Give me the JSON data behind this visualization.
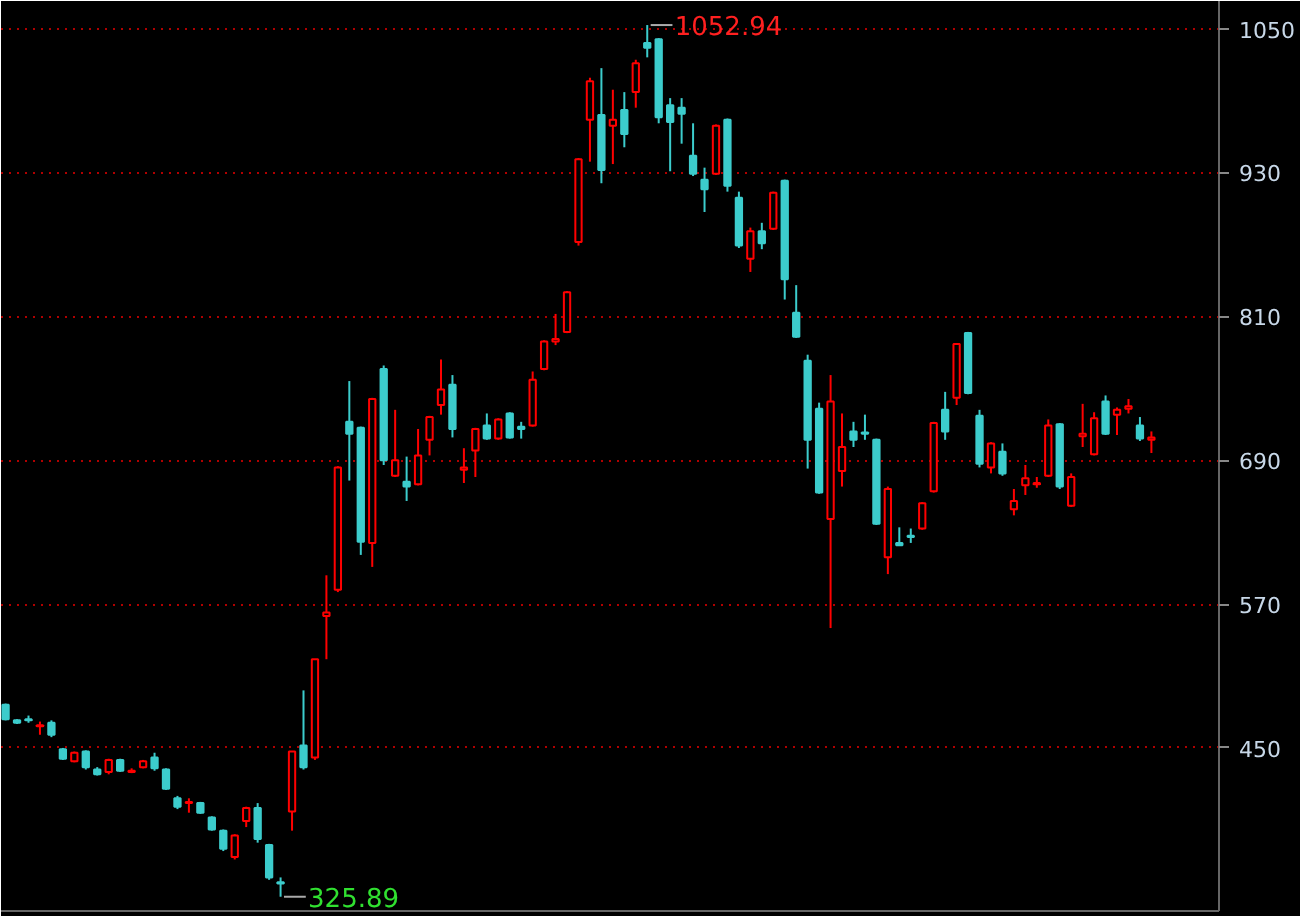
{
  "chart_data": {
    "type": "candlestick",
    "categories": [
      null,
      null,
      null,
      null,
      null,
      null,
      null,
      null,
      null,
      null,
      null,
      null,
      null,
      null,
      null,
      null,
      null,
      null,
      null,
      null,
      null,
      null,
      null,
      null,
      null,
      null,
      null,
      null,
      null,
      null,
      null,
      null,
      null,
      null,
      null,
      null,
      null,
      null,
      null,
      null,
      null,
      null,
      null,
      null,
      null,
      null,
      null,
      null,
      null,
      null,
      null,
      null,
      null,
      null,
      null,
      null,
      null,
      null,
      null,
      null,
      null,
      null,
      null,
      null,
      null,
      null,
      null,
      null,
      null,
      null,
      null,
      null,
      null,
      null,
      null,
      null,
      null,
      null,
      null,
      null,
      null,
      null,
      null,
      null,
      null,
      null,
      null,
      null,
      null,
      null,
      null,
      null,
      null,
      null,
      null,
      null,
      null,
      null,
      null,
      null,
      null
    ],
    "ohlc": [
      [
        486,
        487,
        473,
        474
      ],
      [
        473,
        474,
        470,
        471
      ],
      [
        474,
        477,
        471,
        473
      ],
      [
        468,
        472,
        461,
        469
      ],
      [
        471,
        473,
        459,
        461
      ],
      [
        449,
        450,
        440,
        441
      ],
      [
        439,
        447,
        438,
        446
      ],
      [
        447,
        448,
        432,
        434
      ],
      [
        432,
        434,
        427,
        428
      ],
      [
        430,
        441,
        428,
        440
      ],
      [
        440,
        441,
        430,
        431
      ],
      [
        430,
        433,
        429,
        431
      ],
      [
        434,
        440,
        433,
        439
      ],
      [
        442,
        446,
        431,
        433
      ],
      [
        432,
        433,
        415,
        416
      ],
      [
        408,
        410,
        399,
        401
      ],
      [
        404,
        408,
        396,
        405
      ],
      [
        404,
        405,
        395,
        396
      ],
      [
        392,
        393,
        381,
        382
      ],
      [
        381,
        382,
        364,
        366
      ],
      [
        359,
        378,
        357,
        377
      ],
      [
        389,
        401,
        384,
        400
      ],
      [
        400,
        404,
        371,
        374
      ],
      [
        369,
        370,
        340,
        342
      ],
      [
        338,
        342,
        325.89,
        337
      ],
      [
        397,
        447,
        381,
        447
      ],
      [
        452,
        498,
        432,
        434
      ],
      [
        442,
        524,
        440,
        524
      ],
      [
        560,
        594,
        524,
        563
      ],
      [
        582,
        685,
        580,
        684
      ],
      [
        722,
        756,
        673,
        712
      ],
      [
        717,
        718,
        611,
        622
      ],
      [
        621,
        742,
        601,
        741
      ],
      [
        766,
        769,
        686,
        690
      ],
      [
        677,
        732,
        676,
        690
      ],
      [
        672,
        693,
        656,
        668
      ],
      [
        670,
        716,
        669,
        694
      ],
      [
        707,
        727,
        694,
        726
      ],
      [
        736,
        774,
        728,
        749
      ],
      [
        753,
        761,
        709,
        716
      ],
      [
        682,
        700,
        671,
        684
      ],
      [
        698,
        717,
        676,
        716
      ],
      [
        719,
        729,
        707,
        708
      ],
      [
        708,
        725,
        707,
        724
      ],
      [
        729,
        730,
        708,
        709
      ],
      [
        718,
        722,
        708,
        716
      ],
      [
        719,
        764,
        718,
        757
      ],
      [
        766,
        790,
        765,
        789
      ],
      [
        789,
        812,
        786,
        791
      ],
      [
        797,
        831,
        796,
        830
      ],
      [
        872,
        942,
        869,
        941
      ],
      [
        974,
        1009,
        939,
        1006
      ],
      [
        978,
        1017,
        921,
        932
      ],
      [
        969,
        999,
        937,
        974
      ],
      [
        982,
        997,
        951,
        962
      ],
      [
        997,
        1024,
        984,
        1021
      ],
      [
        1038,
        1052.94,
        1026,
        1034
      ],
      [
        1041,
        1042,
        971,
        976
      ],
      [
        986,
        992,
        931,
        972
      ],
      [
        984,
        992,
        954,
        979
      ],
      [
        944,
        971,
        927,
        929
      ],
      [
        924,
        934,
        897,
        916
      ],
      [
        929,
        970,
        928,
        969
      ],
      [
        974,
        975,
        914,
        919
      ],
      [
        909,
        914,
        867,
        869
      ],
      [
        858,
        884,
        847,
        881
      ],
      [
        881,
        888,
        866,
        871
      ],
      [
        883,
        914,
        882,
        913
      ],
      [
        923,
        924,
        824,
        841
      ],
      [
        813,
        836,
        792,
        793
      ],
      [
        773,
        778,
        683,
        707
      ],
      [
        733,
        738,
        662,
        663
      ],
      [
        641,
        761,
        550,
        739
      ],
      [
        681,
        729,
        668,
        701
      ],
      [
        714,
        722,
        701,
        707
      ],
      [
        713,
        728,
        707,
        712
      ],
      [
        707,
        708,
        636,
        637
      ],
      [
        609,
        668,
        595,
        666
      ],
      [
        621,
        634,
        619,
        619
      ],
      [
        627,
        633,
        621,
        626
      ],
      [
        633,
        655,
        632,
        654
      ],
      [
        664,
        722,
        663,
        721
      ],
      [
        732,
        747,
        707,
        714
      ],
      [
        742,
        787,
        736,
        787
      ],
      [
        796,
        797,
        745,
        746
      ],
      [
        727,
        732,
        684,
        687
      ],
      [
        684,
        705,
        679,
        704
      ],
      [
        697,
        704,
        677,
        679
      ],
      [
        649,
        666,
        644,
        656
      ],
      [
        669,
        686,
        661,
        675
      ],
      [
        670,
        676,
        667,
        671
      ],
      [
        677,
        724,
        676,
        719
      ],
      [
        720,
        721,
        666,
        668
      ],
      [
        652,
        679,
        651,
        676
      ],
      [
        710,
        737,
        701,
        712
      ],
      [
        695,
        730,
        694,
        725
      ],
      [
        739,
        744,
        711,
        712
      ],
      [
        728,
        734,
        711,
        732
      ],
      [
        733,
        741,
        729,
        735
      ],
      [
        719,
        726,
        706,
        708
      ],
      [
        707,
        714,
        696,
        709
      ]
    ],
    "colors": [
      "#3ccccc",
      "#3ccccc",
      "#3ccccc",
      "#ff0000",
      "#3ccccc",
      "#3ccccc",
      "#ff0000",
      "#3ccccc",
      "#3ccccc",
      "#ff0000",
      "#3ccccc",
      "#ff0000",
      "#ff0000",
      "#3ccccc",
      "#3ccccc",
      "#3ccccc",
      "#ff0000",
      "#3ccccc",
      "#3ccccc",
      "#3ccccc",
      "#ff0000",
      "#ff0000",
      "#3ccccc",
      "#3ccccc",
      "#3ccccc",
      "#ff0000",
      "#3ccccc",
      "#ff0000",
      "#ff0000",
      "#ff0000",
      "#3ccccc",
      "#3ccccc",
      "#ff0000",
      "#3ccccc",
      "#ff0000",
      "#3ccccc",
      "#ff0000",
      "#ff0000",
      "#ff0000",
      "#3ccccc",
      "#ff0000",
      "#ff0000",
      "#3ccccc",
      "#ff0000",
      "#3ccccc",
      "#3ccccc",
      "#ff0000",
      "#ff0000",
      "#ff0000",
      "#ff0000",
      "#ff0000",
      "#ff0000",
      "#3ccccc",
      "#ff0000",
      "#3ccccc",
      "#ff0000",
      "#3ccccc",
      "#3ccccc",
      "#3ccccc",
      "#3ccccc",
      "#3ccccc",
      "#3ccccc",
      "#ff0000",
      "#3ccccc",
      "#3ccccc",
      "#ff0000",
      "#3ccccc",
      "#ff0000",
      "#3ccccc",
      "#3ccccc",
      "#3ccccc",
      "#3ccccc",
      "#ff0000",
      "#ff0000",
      "#3ccccc",
      "#3ccccc",
      "#3ccccc",
      "#ff0000",
      "#3ccccc",
      "#3ccccc",
      "#ff0000",
      "#ff0000",
      "#3ccccc",
      "#ff0000",
      "#3ccccc",
      "#3ccccc",
      "#ff0000",
      "#3ccccc",
      "#ff0000",
      "#ff0000",
      "#ff0000",
      "#ff0000",
      "#3ccccc",
      "#ff0000",
      "#ff0000",
      "#ff0000",
      "#3ccccc",
      "#ff0000",
      "#ff0000",
      "#3ccccc",
      "#ff0000"
    ],
    "ylim": [
      314,
      1073
    ],
    "yticks": [
      450,
      570,
      690,
      810,
      930,
      1050
    ],
    "grid": "y",
    "tick_labels": "y",
    "annotations": [
      "1052.94",
      "325.89"
    ]
  }
}
